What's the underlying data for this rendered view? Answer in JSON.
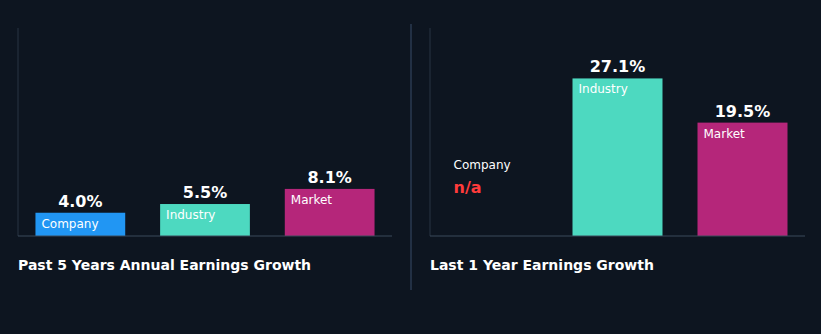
{
  "chart_data": [
    {
      "type": "bar",
      "title": "Past 5 Years Annual Earnings Growth",
      "categories": [
        "Company",
        "Industry",
        "Market"
      ],
      "values": [
        4.0,
        5.5,
        8.1
      ],
      "value_labels": [
        "4.0%",
        "5.5%",
        "8.1%"
      ],
      "colors": [
        "#2196F3",
        "#4DD9C0",
        "#B5267A"
      ],
      "ylim": [
        0,
        35.772
      ],
      "data_labels": true,
      "tick_labels": false
    },
    {
      "type": "bar",
      "title": "Last 1 Year Earnings Growth",
      "categories": [
        "Company",
        "Industry",
        "Market"
      ],
      "values": [
        null,
        27.1,
        19.5
      ],
      "value_labels": [
        "n/a",
        "27.1%",
        "19.5%"
      ],
      "colors": [
        "#FF3B3B",
        "#4DD9C0",
        "#B5267A"
      ],
      "ylim": [
        0,
        35.772
      ],
      "data_labels": true,
      "tick_labels": false
    }
  ]
}
